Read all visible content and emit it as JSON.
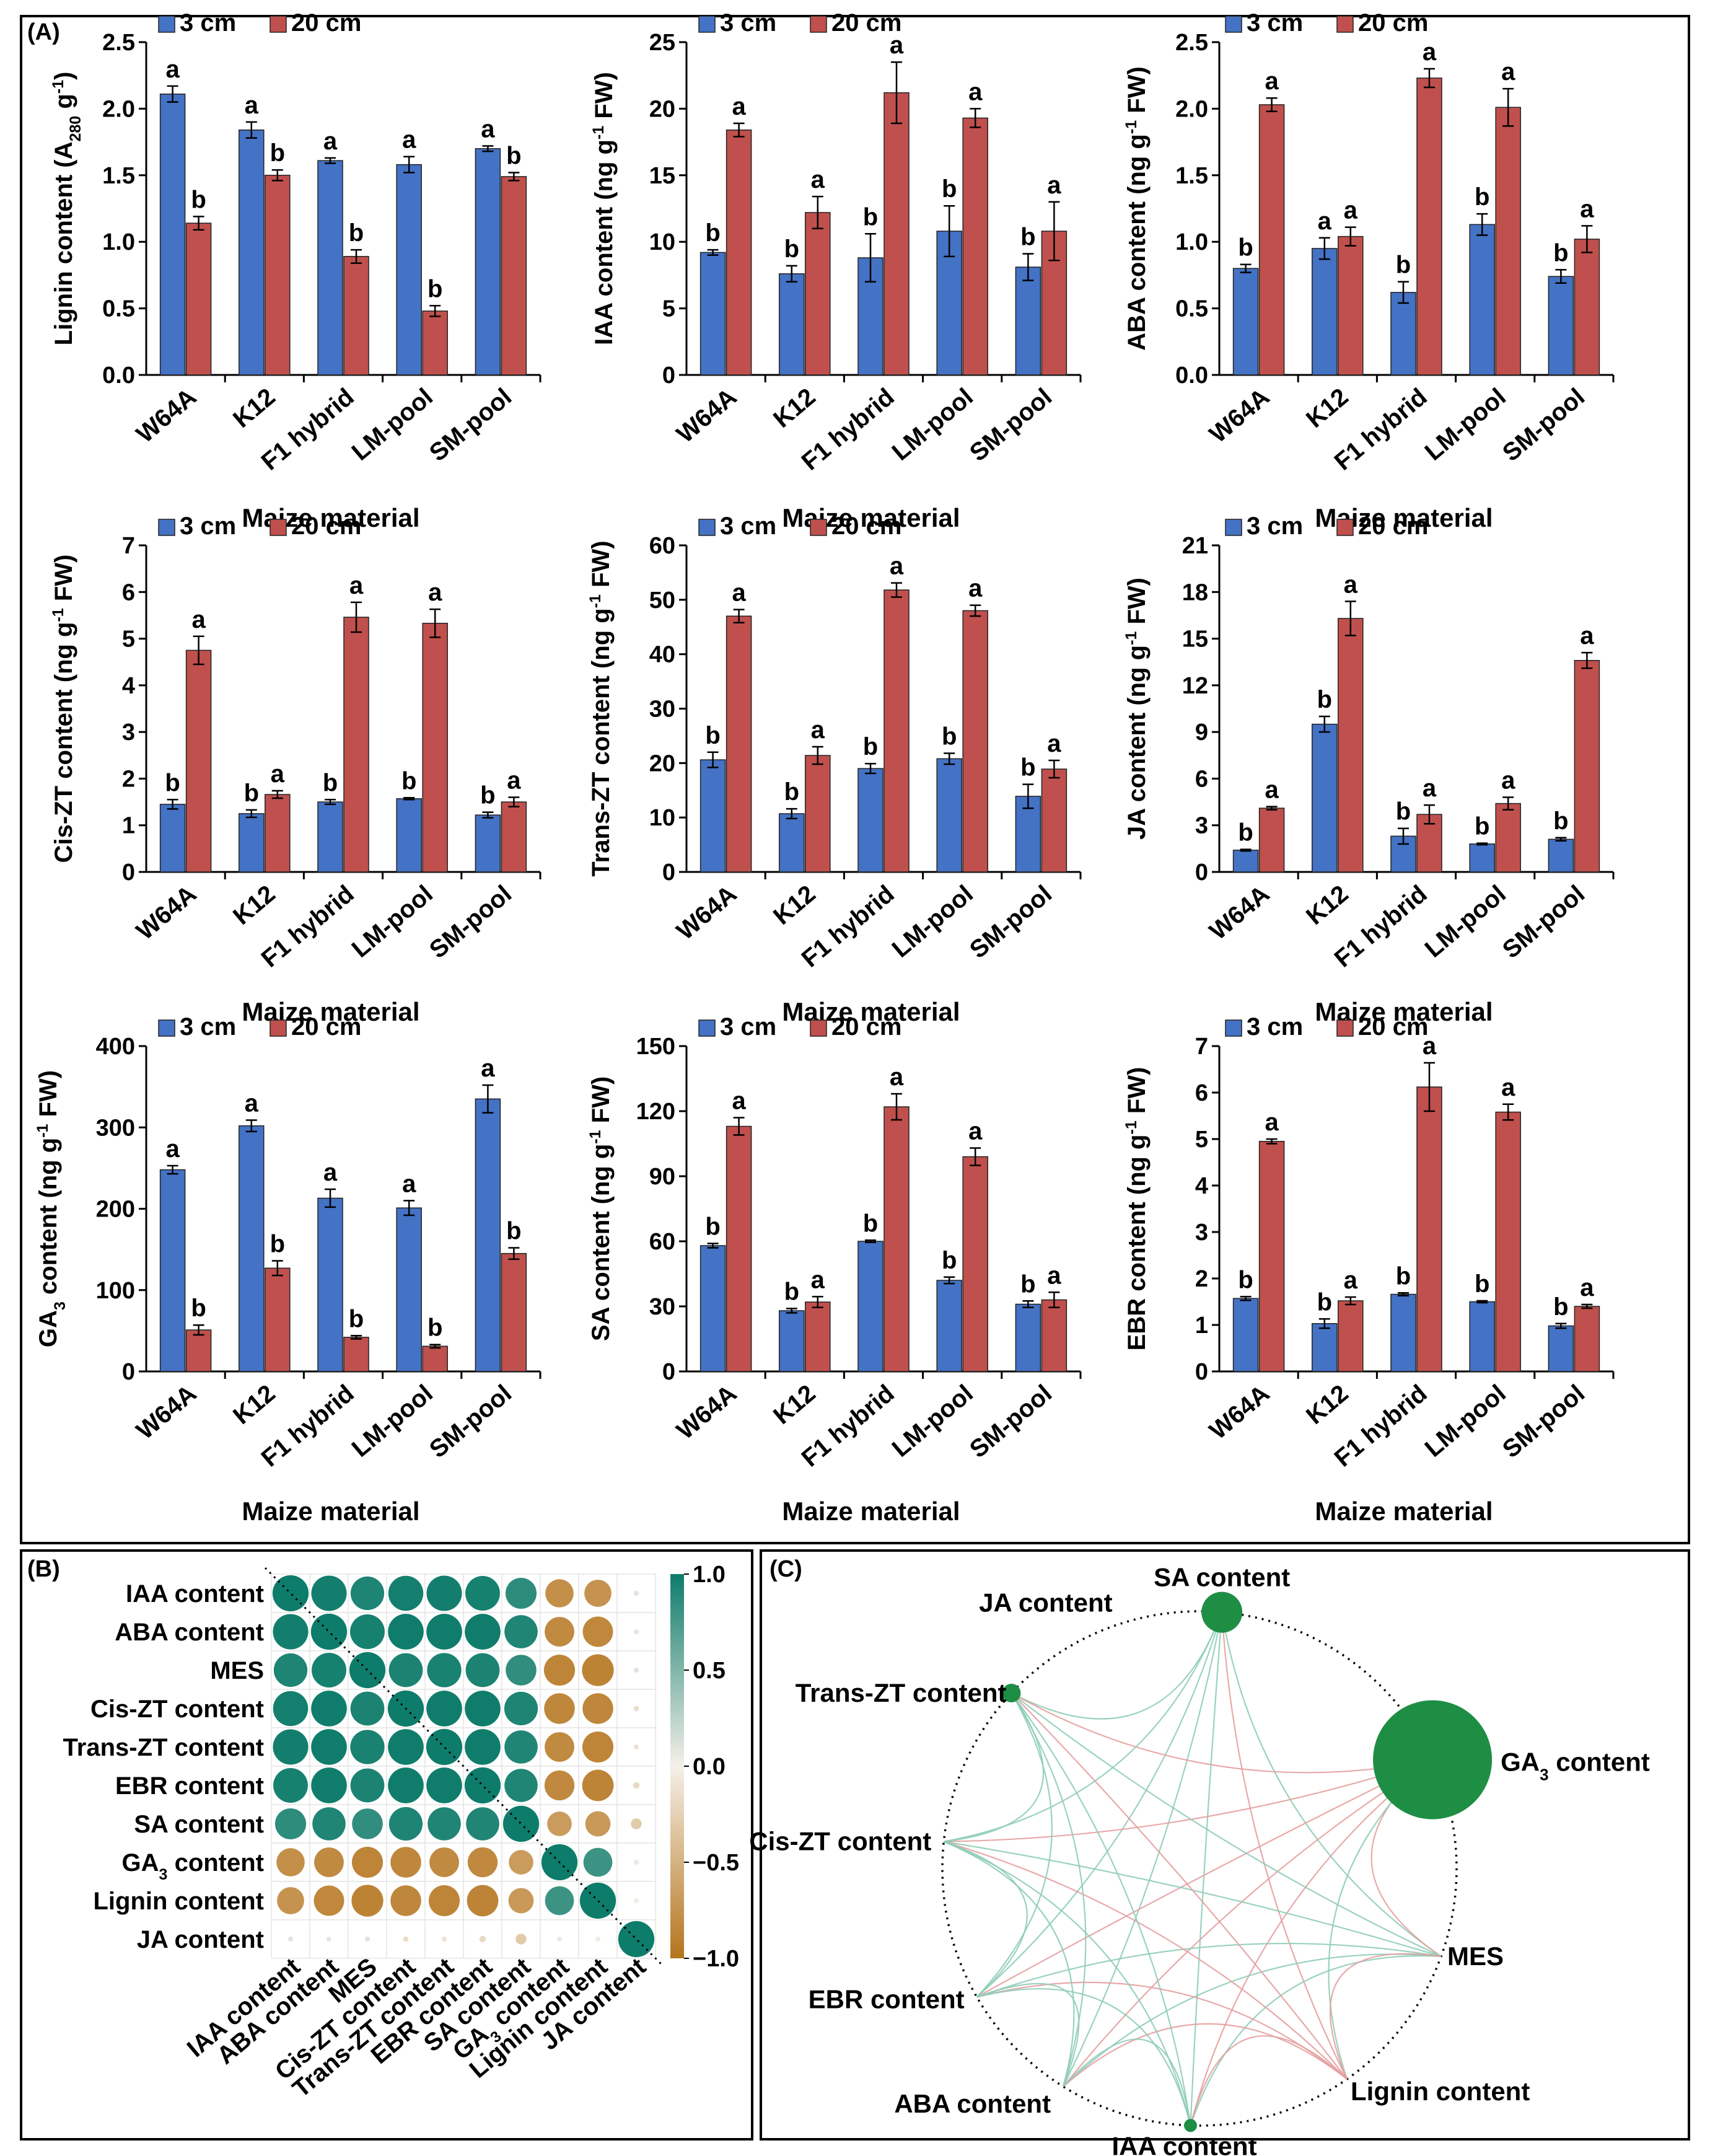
{
  "panel_labels": {
    "a": "(A)",
    "b": "(B)",
    "c": "(C)"
  },
  "colors": {
    "s3": "#4472C4",
    "s20": "#C0504D",
    "pos": "#0E7C6B",
    "neg": "#B5741C",
    "node": "#1E8E45"
  },
  "chart_data": [
    {
      "type": "bar",
      "id": "lignin",
      "categories": [
        "W64A",
        "K12",
        "F1 hybrid",
        "LM-pool",
        "SM-pool"
      ],
      "series": [
        {
          "name": "3 cm",
          "values": [
            2.11,
            1.84,
            1.61,
            1.58,
            1.7
          ],
          "errors": [
            0.06,
            0.06,
            0.02,
            0.06,
            0.02
          ],
          "sig": [
            "a",
            "a",
            "a",
            "a",
            "a"
          ]
        },
        {
          "name": "20 cm",
          "values": [
            1.14,
            1.5,
            0.89,
            0.48,
            1.49
          ],
          "errors": [
            0.05,
            0.04,
            0.05,
            0.04,
            0.03
          ],
          "sig": [
            "b",
            "b",
            "b",
            "b",
            "b"
          ]
        }
      ],
      "ylabel_pre": "Lignin content (A",
      "ylabel_sub": "280",
      "ylabel_mid": " g",
      "ylabel_sup": "-1",
      "ylabel_post": ")",
      "xlabel": "Maize material",
      "yticks": [
        "0.0",
        "0.5",
        "1.0",
        "1.5",
        "2.0",
        "2.5"
      ],
      "ylim": [
        0,
        2.5
      ]
    },
    {
      "type": "bar",
      "id": "iaa",
      "categories": [
        "W64A",
        "K12",
        "F1 hybrid",
        "LM-pool",
        "SM-pool"
      ],
      "series": [
        {
          "name": "3 cm",
          "values": [
            9.2,
            7.6,
            8.8,
            10.8,
            8.1
          ],
          "errors": [
            0.2,
            0.6,
            1.8,
            1.9,
            1.0
          ],
          "sig": [
            "b",
            "b",
            "b",
            "b",
            "b"
          ]
        },
        {
          "name": "20 cm",
          "values": [
            18.4,
            12.2,
            21.2,
            19.3,
            10.8
          ],
          "errors": [
            0.5,
            1.2,
            2.3,
            0.7,
            2.2
          ],
          "sig": [
            "a",
            "a",
            "a",
            "a",
            "a"
          ]
        }
      ],
      "ylabel_pre": "IAA content (ng g",
      "ylabel_sup": "-1",
      "ylabel_post": " FW)",
      "xlabel": "",
      "yticks": [
        "0",
        "5",
        "10",
        "15",
        "20",
        "25"
      ],
      "ylim": [
        0,
        25
      ]
    },
    {
      "type": "bar",
      "id": "aba",
      "categories": [
        "W64A",
        "K12",
        "F1 hybrid",
        "LM-pool",
        "SM-pool"
      ],
      "series": [
        {
          "name": "3 cm",
          "values": [
            0.8,
            0.95,
            0.62,
            1.13,
            0.74
          ],
          "errors": [
            0.03,
            0.08,
            0.08,
            0.08,
            0.05
          ],
          "sig": [
            "b",
            "a",
            "b",
            "b",
            "b"
          ]
        },
        {
          "name": "20 cm",
          "values": [
            2.03,
            1.04,
            2.23,
            2.01,
            1.02
          ],
          "errors": [
            0.05,
            0.07,
            0.07,
            0.14,
            0.1
          ],
          "sig": [
            "a",
            "a",
            "a",
            "a",
            "a"
          ]
        }
      ],
      "ylabel_pre": "ABA content (ng g",
      "ylabel_sup": "-1",
      "ylabel_post": " FW)",
      "xlabel": "Maize material",
      "yticks": [
        "0.0",
        "0.5",
        "1.0",
        "1.5",
        "2.0",
        "2.5"
      ],
      "ylim": [
        0,
        2.5
      ]
    },
    {
      "type": "bar",
      "id": "ciszt",
      "categories": [
        "W64A",
        "K12",
        "F1 hybrid",
        "LM-pool",
        "SM-pool"
      ],
      "series": [
        {
          "name": "3 cm",
          "values": [
            1.45,
            1.25,
            1.5,
            1.57,
            1.22
          ],
          "errors": [
            0.1,
            0.08,
            0.05,
            0.02,
            0.06
          ],
          "sig": [
            "b",
            "b",
            "b",
            "b",
            "b"
          ]
        },
        {
          "name": "20 cm",
          "values": [
            4.75,
            1.66,
            5.46,
            5.33,
            1.5
          ],
          "errors": [
            0.3,
            0.08,
            0.32,
            0.3,
            0.1
          ],
          "sig": [
            "a",
            "a",
            "a",
            "a",
            "a"
          ]
        }
      ],
      "ylabel_pre": "Cis-ZT content (ng g",
      "ylabel_sup": "-1",
      "ylabel_post": " FW)",
      "xlabel": "Maize material",
      "yticks": [
        "0",
        "1",
        "2",
        "3",
        "4",
        "5",
        "6",
        "7"
      ],
      "ylim": [
        0,
        7
      ]
    },
    {
      "type": "bar",
      "id": "transzt",
      "categories": [
        "W64A",
        "K12",
        "F1 hybrid",
        "LM-pool",
        "SM-pool"
      ],
      "series": [
        {
          "name": "3 cm",
          "values": [
            20.6,
            10.7,
            19.0,
            20.8,
            13.9
          ],
          "errors": [
            1.4,
            0.9,
            0.9,
            1.0,
            2.2
          ],
          "sig": [
            "b",
            "b",
            "b",
            "b",
            "b"
          ]
        },
        {
          "name": "20 cm",
          "values": [
            47.0,
            21.4,
            51.8,
            48.0,
            18.9
          ],
          "errors": [
            1.2,
            1.6,
            1.3,
            1.0,
            1.6
          ],
          "sig": [
            "a",
            "a",
            "a",
            "a",
            "a"
          ]
        }
      ],
      "ylabel_pre": "Trans-ZT content (ng g",
      "ylabel_sup": "-1",
      "ylabel_post": " FW)",
      "xlabel": "Maize material",
      "yticks": [
        "0",
        "10",
        "20",
        "30",
        "40",
        "50",
        "60"
      ],
      "ylim": [
        0,
        60
      ]
    },
    {
      "type": "bar",
      "id": "ja",
      "categories": [
        "W64A",
        "K12",
        "F1 hybrid",
        "LM-pool",
        "SM-pool"
      ],
      "series": [
        {
          "name": "3 cm",
          "values": [
            1.4,
            9.5,
            2.3,
            1.8,
            2.1
          ],
          "errors": [
            0.05,
            0.5,
            0.5,
            0.05,
            0.1
          ],
          "sig": [
            "b",
            "b",
            "b",
            "b",
            "b"
          ]
        },
        {
          "name": "20 cm",
          "values": [
            4.1,
            16.3,
            3.7,
            4.4,
            13.6
          ],
          "errors": [
            0.1,
            1.1,
            0.6,
            0.4,
            0.5
          ],
          "sig": [
            "a",
            "a",
            "a",
            "a",
            "a"
          ]
        }
      ],
      "ylabel_pre": "JA content (ng g",
      "ylabel_sup": "-1",
      "ylabel_post": " FW)",
      "xlabel": "Maize material",
      "yticks": [
        "0",
        "3",
        "6",
        "9",
        "12",
        "15",
        "18",
        "21"
      ],
      "ylim": [
        0,
        21
      ]
    },
    {
      "type": "bar",
      "id": "ga3",
      "categories": [
        "W64A",
        "K12",
        "F1 hybrid",
        "LM-pool",
        "SM-pool"
      ],
      "series": [
        {
          "name": "3 cm",
          "values": [
            248,
            302,
            213,
            201,
            335
          ],
          "errors": [
            5,
            7,
            11,
            9,
            17
          ],
          "sig": [
            "a",
            "a",
            "a",
            "a",
            "a"
          ]
        },
        {
          "name": "20 cm",
          "values": [
            51,
            127,
            42,
            31,
            145
          ],
          "errors": [
            6,
            9,
            2,
            2,
            7
          ],
          "sig": [
            "b",
            "b",
            "b",
            "b",
            "b"
          ]
        }
      ],
      "ylabel_pre": "GA",
      "ylabel_sub": "3",
      "ylabel_mid": " content (ng g",
      "ylabel_sup": "-1",
      "ylabel_post": " FW)",
      "xlabel": "Maize material",
      "yticks": [
        "0",
        "100",
        "200",
        "300",
        "400"
      ],
      "ylim": [
        0,
        400
      ]
    },
    {
      "type": "bar",
      "id": "sa",
      "categories": [
        "W64A",
        "K12",
        "F1 hybrid",
        "LM-pool",
        "SM-pool"
      ],
      "series": [
        {
          "name": "3 cm",
          "values": [
            58,
            28,
            60,
            42,
            31
          ],
          "errors": [
            1,
            1,
            0.5,
            1.5,
            1.5
          ],
          "sig": [
            "b",
            "b",
            "b",
            "b",
            "b"
          ]
        },
        {
          "name": "20 cm",
          "values": [
            113,
            32,
            122,
            99,
            33
          ],
          "errors": [
            4,
            2.5,
            6,
            4,
            3.5
          ],
          "sig": [
            "a",
            "a",
            "a",
            "a",
            "a"
          ]
        }
      ],
      "ylabel_pre": "SA content (ng g",
      "ylabel_sup": "-1",
      "ylabel_post": " FW)",
      "xlabel": "Maize material",
      "yticks": [
        "0",
        "30",
        "60",
        "90",
        "120",
        "150"
      ],
      "ylim": [
        0,
        150
      ]
    },
    {
      "type": "bar",
      "id": "ebr",
      "categories": [
        "W64A",
        "K12",
        "F1 hybrid",
        "LM-pool",
        "SM-pool"
      ],
      "series": [
        {
          "name": "3 cm",
          "values": [
            1.57,
            1.03,
            1.66,
            1.5,
            0.98
          ],
          "errors": [
            0.04,
            0.1,
            0.03,
            0.02,
            0.05
          ],
          "sig": [
            "b",
            "b",
            "b",
            "b",
            "b"
          ]
        },
        {
          "name": "20 cm",
          "values": [
            4.95,
            1.52,
            6.12,
            5.58,
            1.4
          ],
          "errors": [
            0.05,
            0.08,
            0.52,
            0.17,
            0.04
          ],
          "sig": [
            "a",
            "a",
            "a",
            "a",
            "a"
          ]
        }
      ],
      "ylabel_pre": "EBR content (ng g",
      "ylabel_sup": "-1",
      "ylabel_post": " FW)",
      "xlabel": "Maize material",
      "yticks": [
        "0",
        "1",
        "2",
        "3",
        "4",
        "5",
        "6",
        "7"
      ],
      "ylim": [
        0,
        7
      ]
    },
    {
      "type": "heatmap",
      "id": "correlation",
      "rows": [
        "IAA content",
        "ABA content",
        "MES",
        "Cis-ZT content",
        "Trans-ZT content",
        "EBR content",
        "SA content",
        "GA3 content",
        "Lignin content",
        "JA content"
      ],
      "cols": [
        "IAA content",
        "ABA content",
        "MES",
        "Cis-ZT content",
        "Trans-ZT content",
        "EBR content",
        "SA content",
        "GA3 content",
        "Lignin content",
        "JA content"
      ],
      "values": [
        [
          1.0,
          0.98,
          0.93,
          0.97,
          0.98,
          0.96,
          0.86,
          -0.78,
          -0.75,
          0.1
        ],
        [
          0.98,
          1.0,
          0.96,
          0.99,
          0.99,
          0.99,
          0.92,
          -0.82,
          -0.84,
          0.08
        ],
        [
          0.93,
          0.96,
          1.0,
          0.94,
          0.95,
          0.94,
          0.85,
          -0.86,
          -0.88,
          0.1
        ],
        [
          0.97,
          0.99,
          0.94,
          1.0,
          0.99,
          0.99,
          0.93,
          -0.85,
          -0.85,
          -0.15
        ],
        [
          0.98,
          0.99,
          0.95,
          0.99,
          1.0,
          0.99,
          0.92,
          -0.82,
          -0.86,
          -0.12
        ],
        [
          0.96,
          0.99,
          0.94,
          0.99,
          0.99,
          1.0,
          0.92,
          -0.83,
          -0.87,
          -0.18
        ],
        [
          0.86,
          0.92,
          0.85,
          0.93,
          0.92,
          0.92,
          1.0,
          -0.68,
          -0.7,
          -0.3
        ],
        [
          -0.78,
          -0.82,
          -0.86,
          -0.85,
          -0.82,
          -0.83,
          -0.68,
          1.0,
          0.8,
          0.05
        ],
        [
          -0.75,
          -0.84,
          -0.88,
          -0.85,
          -0.86,
          -0.87,
          -0.7,
          0.8,
          1.0,
          0.03
        ],
        [
          0.1,
          0.08,
          0.1,
          -0.15,
          -0.12,
          -0.18,
          -0.3,
          0.05,
          0.03,
          1.0
        ]
      ],
      "colorbar_ticks": [
        "1.0",
        "0.5",
        "0.0",
        "−0.5",
        "−1.0"
      ],
      "range": [
        -1,
        1
      ]
    },
    {
      "type": "network",
      "id": "network",
      "nodes": [
        {
          "name": "SA content",
          "size": 0.3
        },
        {
          "name": "GA3 content",
          "size": 1.0
        },
        {
          "name": "MES",
          "size": 0
        },
        {
          "name": "Lignin content",
          "size": 0
        },
        {
          "name": "IAA content",
          "size": 0.05
        },
        {
          "name": "ABA content",
          "size": 0
        },
        {
          "name": "EBR content",
          "size": 0
        },
        {
          "name": "Cis-ZT content",
          "size": 0
        },
        {
          "name": "Trans-ZT content",
          "size": 0.1
        },
        {
          "name": "JA content",
          "size": 0
        }
      ],
      "edges": [
        {
          "from": "SA content",
          "to": "Trans-ZT content",
          "sign": "pos"
        },
        {
          "from": "SA content",
          "to": "Cis-ZT content",
          "sign": "pos"
        },
        {
          "from": "SA content",
          "to": "EBR content",
          "sign": "pos"
        },
        {
          "from": "SA content",
          "to": "ABA content",
          "sign": "pos"
        },
        {
          "from": "SA content",
          "to": "IAA content",
          "sign": "pos"
        },
        {
          "from": "SA content",
          "to": "Lignin content",
          "sign": "neg"
        },
        {
          "from": "SA content",
          "to": "MES",
          "sign": "pos"
        },
        {
          "from": "GA3 content",
          "to": "Trans-ZT content",
          "sign": "neg"
        },
        {
          "from": "GA3 content",
          "to": "Cis-ZT content",
          "sign": "neg"
        },
        {
          "from": "GA3 content",
          "to": "EBR content",
          "sign": "neg"
        },
        {
          "from": "GA3 content",
          "to": "ABA content",
          "sign": "neg"
        },
        {
          "from": "GA3 content",
          "to": "IAA content",
          "sign": "neg"
        },
        {
          "from": "GA3 content",
          "to": "MES",
          "sign": "neg"
        },
        {
          "from": "GA3 content",
          "to": "Lignin content",
          "sign": "pos"
        },
        {
          "from": "MES",
          "to": "Trans-ZT content",
          "sign": "pos"
        },
        {
          "from": "MES",
          "to": "Cis-ZT content",
          "sign": "pos"
        },
        {
          "from": "MES",
          "to": "EBR content",
          "sign": "pos"
        },
        {
          "from": "MES",
          "to": "ABA content",
          "sign": "pos"
        },
        {
          "from": "MES",
          "to": "IAA content",
          "sign": "pos"
        },
        {
          "from": "MES",
          "to": "Lignin content",
          "sign": "neg"
        },
        {
          "from": "Lignin content",
          "to": "Trans-ZT content",
          "sign": "neg"
        },
        {
          "from": "Lignin content",
          "to": "Cis-ZT content",
          "sign": "neg"
        },
        {
          "from": "Lignin content",
          "to": "EBR content",
          "sign": "neg"
        },
        {
          "from": "Lignin content",
          "to": "ABA content",
          "sign": "neg"
        },
        {
          "from": "Lignin content",
          "to": "IAA content",
          "sign": "neg"
        },
        {
          "from": "IAA content",
          "to": "Trans-ZT content",
          "sign": "pos"
        },
        {
          "from": "IAA content",
          "to": "Cis-ZT content",
          "sign": "pos"
        },
        {
          "from": "IAA content",
          "to": "EBR content",
          "sign": "pos"
        },
        {
          "from": "IAA content",
          "to": "ABA content",
          "sign": "pos"
        },
        {
          "from": "ABA content",
          "to": "Trans-ZT content",
          "sign": "pos"
        },
        {
          "from": "ABA content",
          "to": "Cis-ZT content",
          "sign": "pos"
        },
        {
          "from": "ABA content",
          "to": "EBR content",
          "sign": "pos"
        },
        {
          "from": "EBR content",
          "to": "Trans-ZT content",
          "sign": "pos"
        },
        {
          "from": "EBR content",
          "to": "Cis-ZT content",
          "sign": "pos"
        },
        {
          "from": "Cis-ZT content",
          "to": "Trans-ZT content",
          "sign": "pos"
        }
      ]
    }
  ]
}
